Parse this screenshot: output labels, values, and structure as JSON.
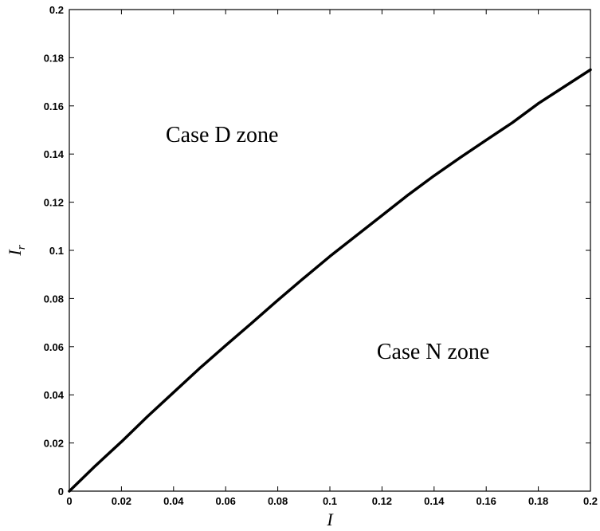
{
  "chart_data": {
    "type": "line",
    "title": "",
    "xlabel": "I",
    "ylabel": {
      "base": "I",
      "sub": "r"
    },
    "xlim": [
      0,
      0.2
    ],
    "ylim": [
      0,
      0.2
    ],
    "xticks": [
      "0",
      "0.02",
      "0.04",
      "0.06",
      "0.08",
      "0.1",
      "0.12",
      "0.14",
      "0.16",
      "0.18",
      "0.2"
    ],
    "yticks": [
      "0",
      "0.02",
      "0.04",
      "0.06",
      "0.08",
      "0.1",
      "0.12",
      "0.14",
      "0.16",
      "0.18",
      "0.2"
    ],
    "grid": false,
    "series": [
      {
        "color": "#000000",
        "x": [
          0,
          0.01,
          0.02,
          0.03,
          0.04,
          0.05,
          0.06,
          0.07,
          0.08,
          0.09,
          0.1,
          0.11,
          0.12,
          0.13,
          0.14,
          0.15,
          0.16,
          0.17,
          0.18,
          0.19,
          0.2
        ],
        "y": [
          0,
          0.0105,
          0.0205,
          0.031,
          0.041,
          0.051,
          0.0605,
          0.0698,
          0.0793,
          0.0885,
          0.0975,
          0.106,
          0.1145,
          0.123,
          0.131,
          0.1385,
          0.1458,
          0.153,
          0.161,
          0.168,
          0.175
        ]
      }
    ],
    "annotations": [
      {
        "text": "Case D zone",
        "x": 0.037,
        "y": 0.145
      },
      {
        "text": "Case N zone",
        "x": 0.118,
        "y": 0.055
      }
    ]
  }
}
